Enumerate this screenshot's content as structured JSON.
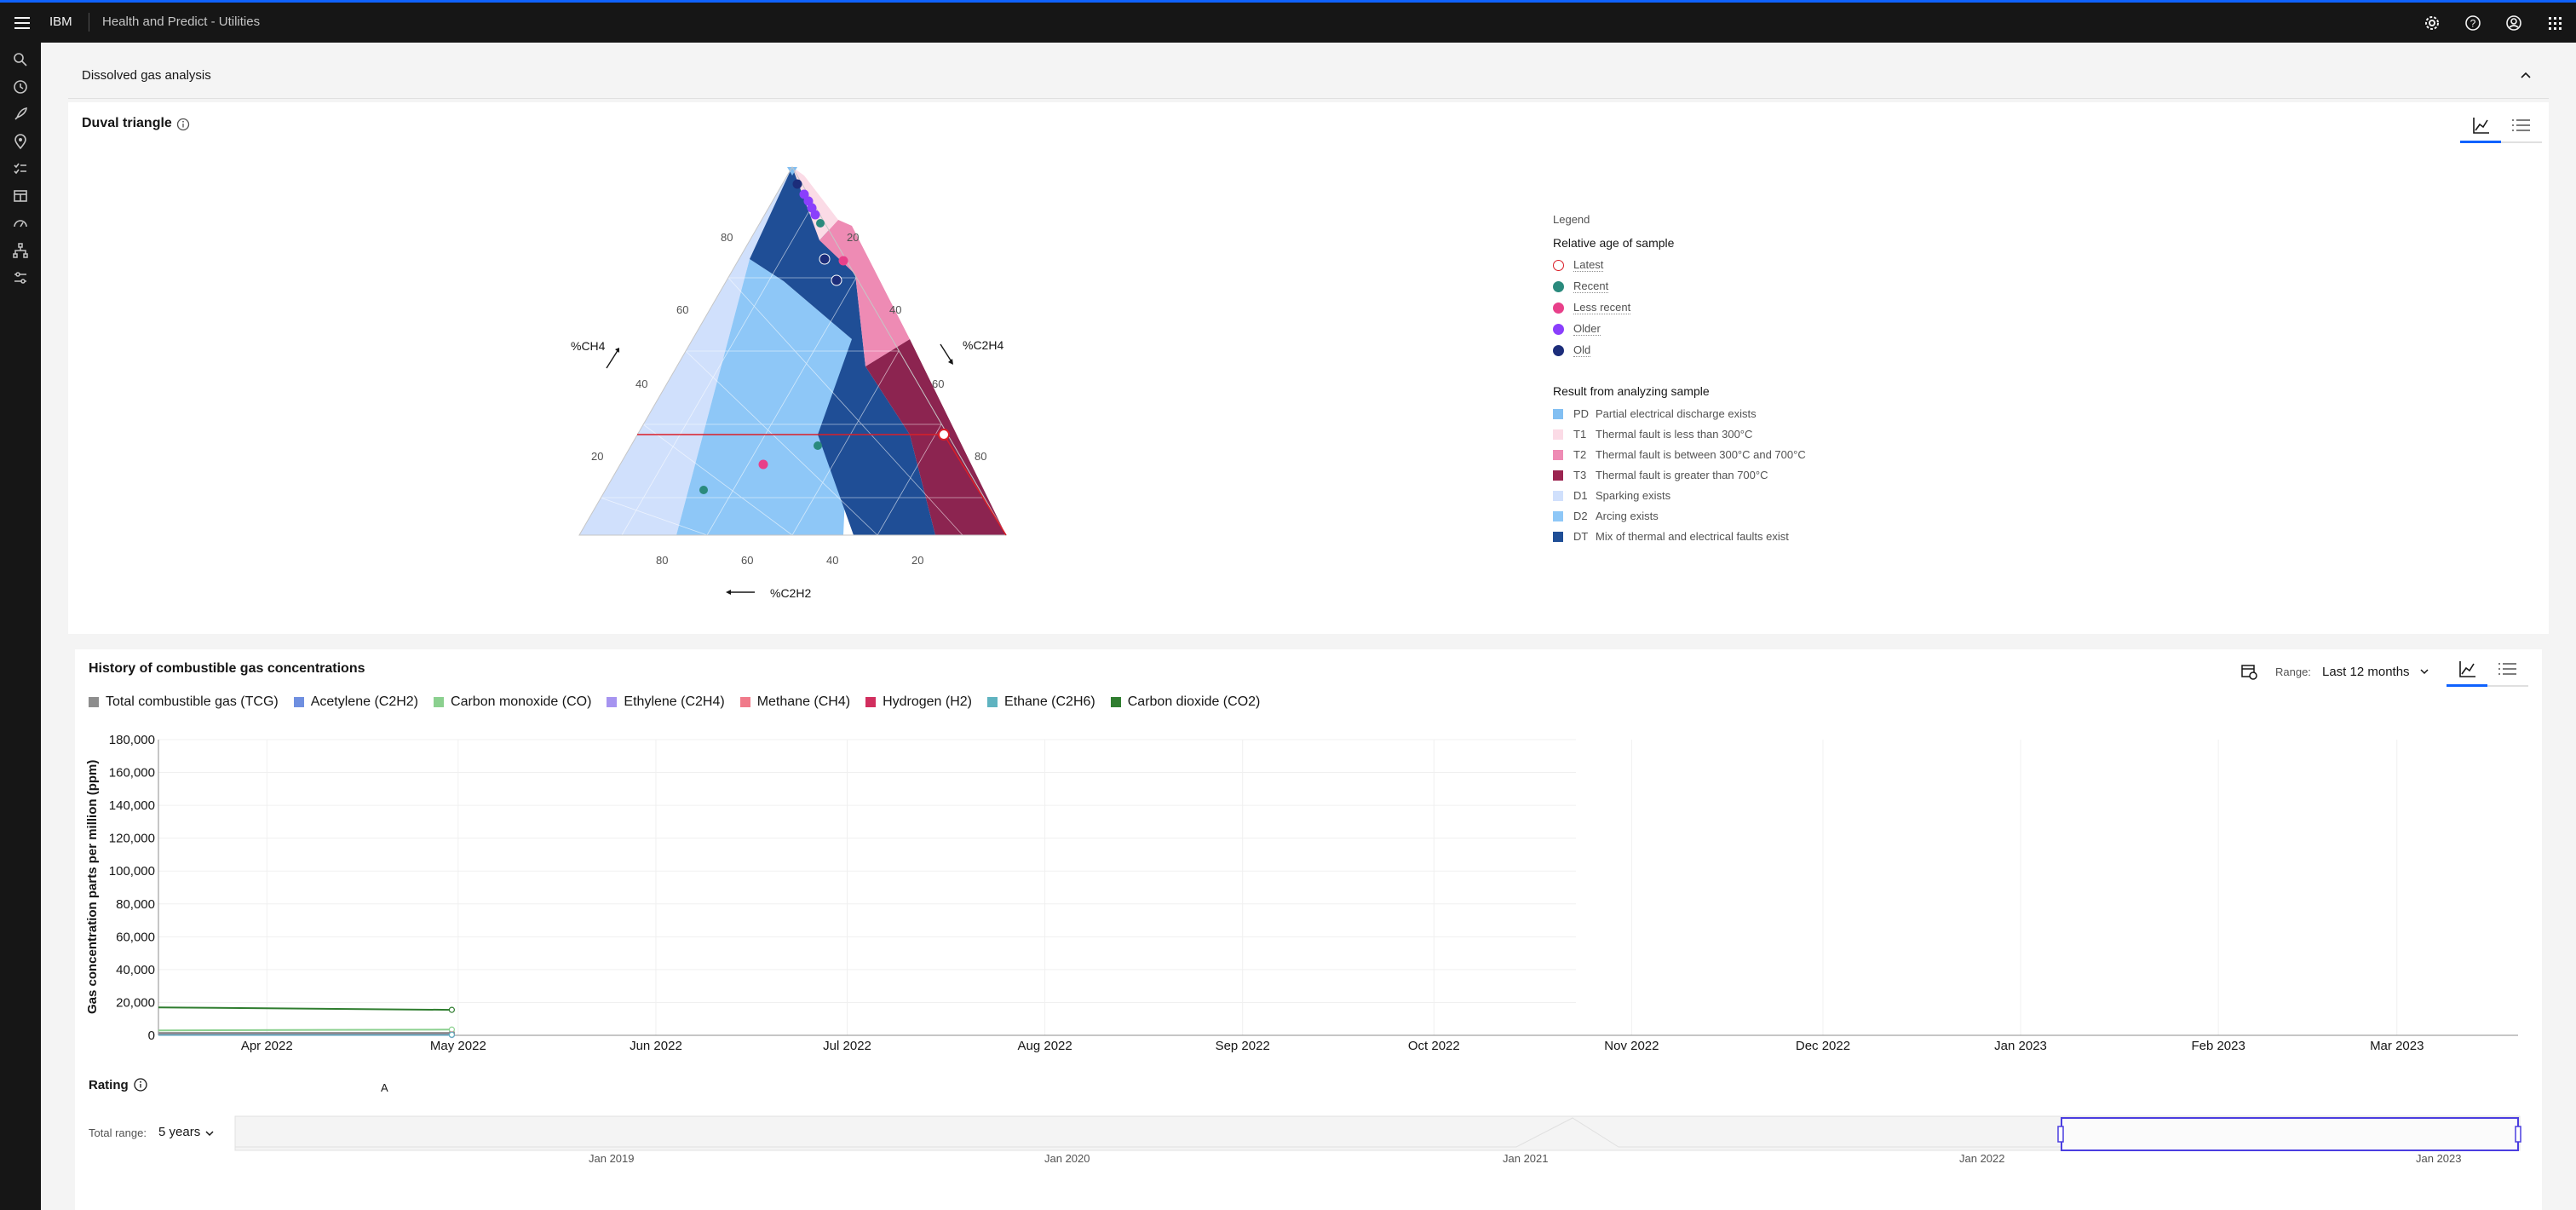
{
  "header": {
    "brand": "IBM",
    "app_title": "Health and Predict - Utilities",
    "icons": [
      "settings-icon",
      "help-icon",
      "user-avatar-icon",
      "app-switcher-icon"
    ]
  },
  "sidenav": {
    "icons": [
      "search-icon",
      "recent-icon",
      "rocket-icon",
      "location-icon",
      "checklist-icon",
      "dashboard-icon",
      "gauge-icon",
      "hierarchy-icon",
      "settings-adjust-icon"
    ]
  },
  "accordion": {
    "title": "Dissolved gas analysis"
  },
  "duval": {
    "title": "Duval triangle",
    "axis_labels": {
      "ch4": "%CH4",
      "c2h4": "%C2H4",
      "c2h2": "%C2H2"
    },
    "left_ticks": [
      "80",
      "60",
      "40",
      "20"
    ],
    "right_ticks": [
      "20",
      "40",
      "60",
      "80"
    ],
    "bottom_ticks": [
      "80",
      "60",
      "40",
      "20"
    ],
    "legend": {
      "heading": "Legend",
      "age_title": "Relative age of sample",
      "ages": [
        {
          "label": "Latest",
          "color": "#ffffff",
          "stroke": "#da1e28"
        },
        {
          "label": "Recent",
          "color": "#2a8a7d",
          "stroke": "#2a8a7d"
        },
        {
          "label": "Less recent",
          "color": "#e8408a",
          "stroke": "#e8408a"
        },
        {
          "label": "Older",
          "color": "#8a3ffc",
          "stroke": "#8a3ffc"
        },
        {
          "label": "Old",
          "color": "#1c2d7a",
          "stroke": "#1c2d7a"
        }
      ],
      "result_title": "Result from analyzing sample",
      "results": [
        {
          "code": "PD",
          "label": "Partial electrical discharge exists",
          "color": "#82bff2"
        },
        {
          "code": "T1",
          "label": "Thermal fault is less than 300°C",
          "color": "#fbdbe6"
        },
        {
          "code": "T2",
          "label": "Thermal fault is between 300°C and 700°C",
          "color": "#ee8bb4"
        },
        {
          "code": "T3",
          "label": "Thermal fault is greater than 700°C",
          "color": "#9b2450"
        },
        {
          "code": "D1",
          "label": "Sparking exists",
          "color": "#d0e0fc"
        },
        {
          "code": "D2",
          "label": "Arcing exists",
          "color": "#8ec7f7"
        },
        {
          "code": "DT",
          "label": "Mix of thermal and electrical faults exist",
          "color": "#1f4e96"
        }
      ]
    }
  },
  "history": {
    "title": "History of combustible gas concentrations",
    "range_label": "Range:",
    "range_value": "Last 12 months",
    "rating_label": "Rating",
    "rating_value": "A",
    "total_range_label": "Total range:",
    "total_range_value": "5 years",
    "navigator_ticks": [
      "Jan 2019",
      "Jan 2020",
      "Jan 2021",
      "Jan 2022",
      "Jan 2023"
    ]
  },
  "chart_data": {
    "type": "line",
    "ylabel": "Gas concentration parts per million (ppm)",
    "ylim": [
      0,
      180000
    ],
    "yticks": [
      "180,000",
      "160,000",
      "140,000",
      "120,000",
      "100,000",
      "80,000",
      "60,000",
      "40,000",
      "20,000",
      "0"
    ],
    "x_ticks": [
      "Apr 2022",
      "May 2022",
      "Jun 2022",
      "Jul 2022",
      "Aug 2022",
      "Sep 2022",
      "Oct 2022",
      "Nov 2022",
      "Dec 2022",
      "Jan 2023",
      "Feb 2023",
      "Mar 2023"
    ],
    "x_range": [
      "2022-03-15",
      "2023-03-20"
    ],
    "series": [
      {
        "name": "Total combustible gas (TCG)",
        "color": "#8d8d8d",
        "x": [
          "2022-03-15",
          "2022-04-30"
        ],
        "values": [
          1500,
          1500
        ]
      },
      {
        "name": "Acetylene (C2H2)",
        "color": "#6f8fe0",
        "x": [
          "2022-03-15",
          "2022-04-30"
        ],
        "values": [
          200,
          200
        ]
      },
      {
        "name": "Carbon monoxide (CO)",
        "color": "#8bd08f",
        "x": [
          "2022-03-15",
          "2022-04-30"
        ],
        "values": [
          3000,
          3500
        ]
      },
      {
        "name": "Ethylene (C2H4)",
        "color": "#a694f0",
        "x": [
          "2022-03-15",
          "2022-04-30"
        ],
        "values": [
          300,
          300
        ]
      },
      {
        "name": "Methane (CH4)",
        "color": "#f07a8a",
        "x": [
          "2022-03-15",
          "2022-04-30"
        ],
        "values": [
          400,
          400
        ]
      },
      {
        "name": "Hydrogen (H2)",
        "color": "#d12e5e",
        "x": [
          "2022-03-15",
          "2022-04-30"
        ],
        "values": [
          500,
          500
        ]
      },
      {
        "name": "Ethane (C2H6)",
        "color": "#5fb3c0",
        "x": [
          "2022-03-15",
          "2022-04-30"
        ],
        "values": [
          350,
          350
        ]
      },
      {
        "name": "Carbon dioxide (CO2)",
        "color": "#2f7d2f",
        "x": [
          "2022-03-15",
          "2022-04-30"
        ],
        "values": [
          17000,
          15500
        ]
      }
    ],
    "grid": true,
    "legend_position": "top"
  }
}
